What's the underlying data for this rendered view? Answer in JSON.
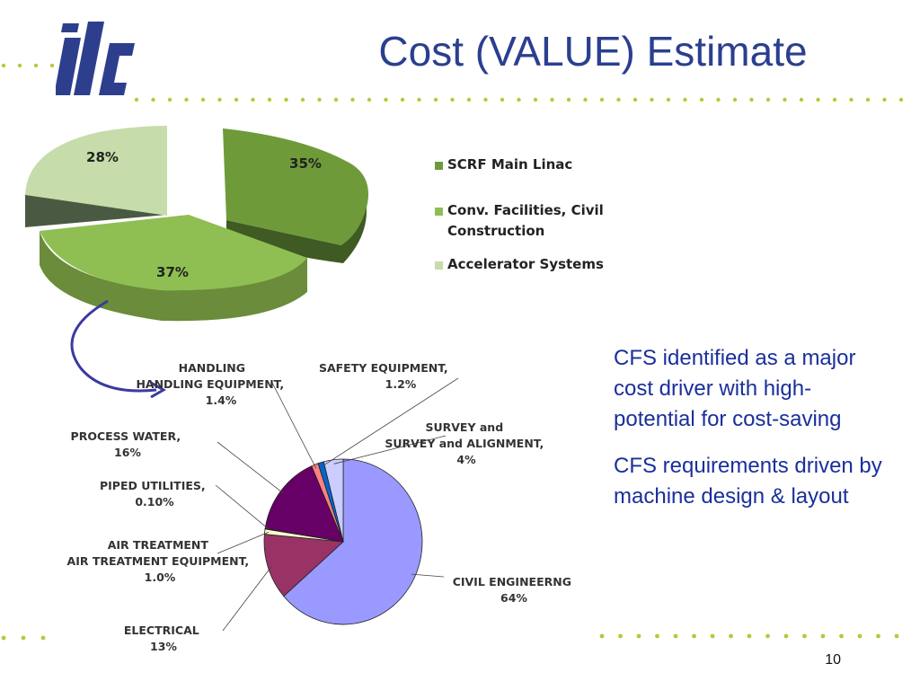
{
  "slide": {
    "title": "Cost (VALUE) Estimate",
    "page_number": "10",
    "logo_text": "ilc",
    "side_text": [
      "CFS identified as a major cost driver with high-potential for cost-saving",
      "CFS requirements driven by machine design & layout"
    ],
    "colors": {
      "title": "#2a3f8f",
      "body_text": "#1a2f9a",
      "dots": "#b5c93a",
      "arrow": "#3a3aa0"
    }
  },
  "chart_data": [
    {
      "type": "pie",
      "style": "3d-exploded",
      "labels": [
        "SCRF Main Linac",
        "Conv. Facilities, Civil Construction",
        "Accelerator Systems"
      ],
      "values": [
        35,
        37,
        28
      ],
      "value_labels": [
        "35%",
        "37%",
        "28%"
      ],
      "colors": [
        "#6f9a3a",
        "#8fbf52",
        "#c6dcaa"
      ],
      "legend_position": "right"
    },
    {
      "type": "pie",
      "labels": [
        "CIVIL ENGINEERNG",
        "ELECTRICAL",
        "AIR TREATMENT EQUIPMENT,",
        "PIPED UTILITIES,",
        "PROCESS WATER,",
        "HANDLING EQUIPMENT,",
        "SAFETY EQUIPMENT,",
        "SURVEY and ALIGNMENT,"
      ],
      "values": [
        64,
        13,
        1.0,
        0.1,
        16,
        1.4,
        1.2,
        4
      ],
      "value_labels": [
        "64%",
        "13%",
        "1.0%",
        "0.10%",
        "16%",
        "1.4%",
        "1.2%",
        "4%"
      ],
      "colors": [
        "#9999ff",
        "#993366",
        "#ffffcc",
        "#ccffff",
        "#660066",
        "#ff8080",
        "#0066cc",
        "#ccccff"
      ]
    }
  ]
}
